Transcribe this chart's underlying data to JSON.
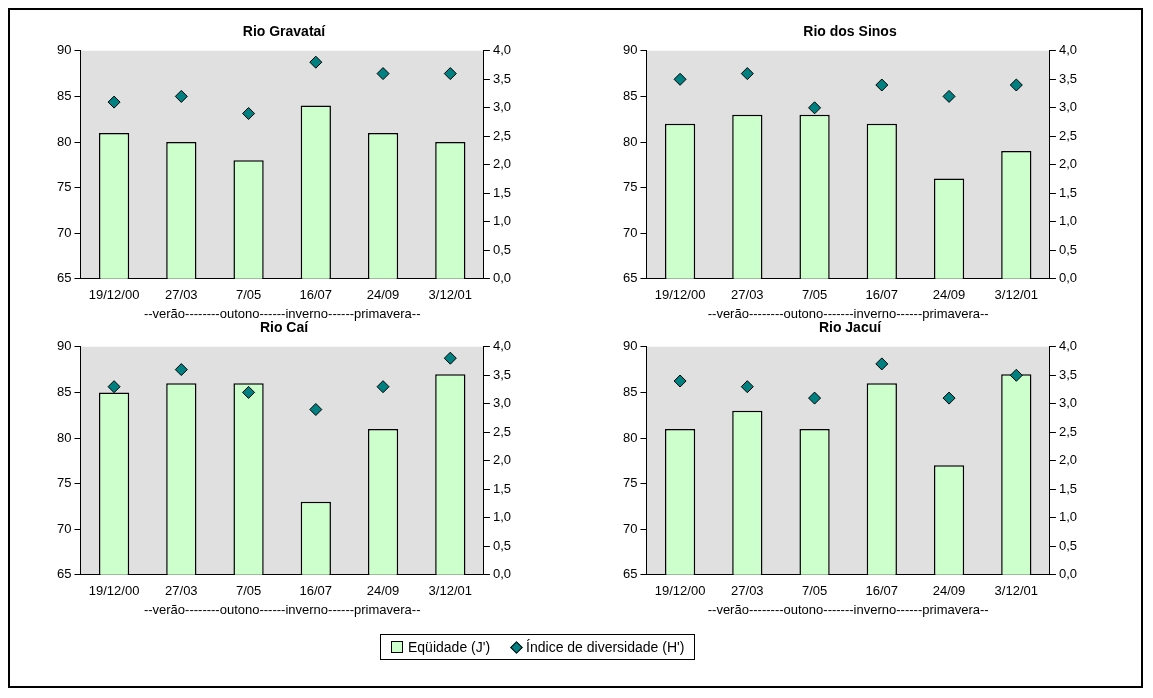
{
  "chart_data": [
    {
      "type": "bar",
      "title": "Rio Gravataí",
      "xlabel": "--verão--------outono------inverno------primavera--",
      "categories": [
        "19/12/00",
        "27/03",
        "7/05",
        "16/07",
        "24/09",
        "3/12/01"
      ],
      "legend": "bottom",
      "ylim": [
        65,
        90
      ],
      "yticks": [
        65,
        70,
        75,
        80,
        85,
        90
      ],
      "y2lim": [
        0,
        4
      ],
      "y2ticks": [
        {
          "value": 0,
          "label": "0,0"
        },
        {
          "value": 0.5,
          "label": "0,5"
        },
        {
          "value": 1,
          "label": "1,0"
        },
        {
          "value": 1.5,
          "label": "1,5"
        },
        {
          "value": 2,
          "label": "2,0"
        },
        {
          "value": 2.5,
          "label": "2,5"
        },
        {
          "value": 3,
          "label": "3,0"
        },
        {
          "value": 3.5,
          "label": "3,5"
        },
        {
          "value": 4,
          "label": "4,0"
        }
      ],
      "grid": false,
      "series": [
        {
          "name": "Eqüidade (J')",
          "color": "#ccffcc",
          "values": [
            81,
            80,
            78,
            84,
            81,
            80
          ]
        },
        {
          "name": "Índice de diversidade (H')",
          "type": "scatter",
          "axis": "y2",
          "marker": "diamond",
          "color": "#008080",
          "values": [
            3.1,
            3.2,
            2.9,
            3.8,
            3.6,
            3.6
          ]
        }
      ]
    },
    {
      "type": "bar",
      "title": "Rio dos Sinos",
      "xlabel": "--verão--------outono-------inverno------primavera--",
      "categories": [
        "19/12/00",
        "27/03",
        "7/05",
        "16/07",
        "24/09",
        "3/12/01"
      ],
      "ylim": [
        65,
        90
      ],
      "yticks": [
        65,
        70,
        75,
        80,
        85,
        90
      ],
      "y2lim": [
        0,
        4
      ],
      "y2ticks": [
        {
          "value": 0,
          "label": "0,0"
        },
        {
          "value": 0.5,
          "label": "0,5"
        },
        {
          "value": 1,
          "label": "1,0"
        },
        {
          "value": 1.5,
          "label": "1,5"
        },
        {
          "value": 2,
          "label": "2,0"
        },
        {
          "value": 2.5,
          "label": "2,5"
        },
        {
          "value": 3,
          "label": "3,0"
        },
        {
          "value": 3.5,
          "label": "3,5"
        },
        {
          "value": 4,
          "label": "4,0"
        }
      ],
      "grid": false,
      "series": [
        {
          "color": "#ccffcc",
          "values": [
            82,
            83,
            83,
            82,
            76,
            79
          ]
        },
        {
          "type": "scatter",
          "axis": "y2",
          "marker": "diamond",
          "color": "#008080",
          "values": [
            3.5,
            3.6,
            3.0,
            3.4,
            3.2,
            3.4
          ]
        }
      ]
    },
    {
      "type": "bar",
      "title": "Rio Caí",
      "xlabel": "--verão--------outono------inverno------primavera--",
      "categories": [
        "19/12/00",
        "27/03",
        "7/05",
        "16/07",
        "24/09",
        "3/12/01"
      ],
      "ylim": [
        65,
        90
      ],
      "yticks": [
        65,
        70,
        75,
        80,
        85,
        90
      ],
      "y2lim": [
        0,
        4
      ],
      "y2ticks": [
        {
          "value": 0,
          "label": "0,0"
        },
        {
          "value": 0.5,
          "label": "0,5"
        },
        {
          "value": 1,
          "label": "1,0"
        },
        {
          "value": 1.5,
          "label": "1,5"
        },
        {
          "value": 2,
          "label": "2,0"
        },
        {
          "value": 2.5,
          "label": "2,5"
        },
        {
          "value": 3,
          "label": "3,0"
        },
        {
          "value": 3.5,
          "label": "3,5"
        },
        {
          "value": 4,
          "label": "4,0"
        }
      ],
      "grid": false,
      "series": [
        {
          "color": "#ccffcc",
          "values": [
            85,
            86,
            86,
            73,
            81,
            87
          ]
        },
        {
          "type": "scatter",
          "axis": "y2",
          "marker": "diamond",
          "color": "#008080",
          "values": [
            3.3,
            3.6,
            3.2,
            2.9,
            3.3,
            3.8
          ]
        }
      ]
    },
    {
      "type": "bar",
      "title": "Rio Jacuí",
      "xlabel": "--verão--------outono-------inverno------primavera--",
      "categories": [
        "19/12/00",
        "27/03",
        "7/05",
        "16/07",
        "24/09",
        "3/12/01"
      ],
      "ylim": [
        65,
        90
      ],
      "yticks": [
        65,
        70,
        75,
        80,
        85,
        90
      ],
      "y2lim": [
        0,
        4
      ],
      "y2ticks": [
        {
          "value": 0,
          "label": "0,0"
        },
        {
          "value": 0.5,
          "label": "0,5"
        },
        {
          "value": 1,
          "label": "1,0"
        },
        {
          "value": 1.5,
          "label": "1,5"
        },
        {
          "value": 2,
          "label": "2,0"
        },
        {
          "value": 2.5,
          "label": "2,5"
        },
        {
          "value": 3,
          "label": "3,0"
        },
        {
          "value": 3.5,
          "label": "3,5"
        },
        {
          "value": 4,
          "label": "4,0"
        }
      ],
      "grid": false,
      "series": [
        {
          "color": "#ccffcc",
          "values": [
            81,
            83,
            81,
            86,
            77,
            87
          ]
        },
        {
          "type": "scatter",
          "axis": "y2",
          "marker": "diamond",
          "color": "#008080",
          "values": [
            3.4,
            3.3,
            3.1,
            3.7,
            3.1,
            3.5
          ]
        }
      ]
    }
  ]
}
